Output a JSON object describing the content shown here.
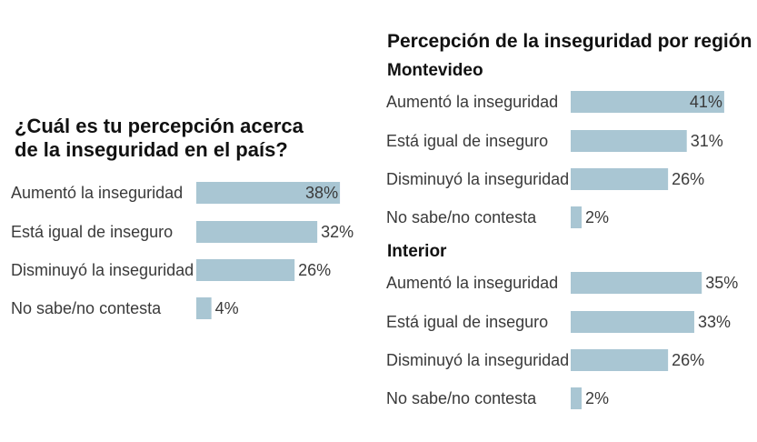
{
  "national": {
    "title_line1": "¿Cuál es tu percepción acerca",
    "title_line2": "de la inseguridad en el país?"
  },
  "regional": {
    "title": "Percepción de la inseguridad por región",
    "montevideo_label": "Montevideo",
    "interior_label": "Interior"
  },
  "colors": {
    "bar": "#a9c6d3",
    "text": "#3a3a3a"
  },
  "chart_data": [
    {
      "type": "bar",
      "orientation": "horizontal",
      "title": "¿Cuál es tu percepción acerca de la inseguridad en el país?",
      "categories": [
        "Aumentó la inseguridad",
        "Está igual de inseguro",
        "Disminuyó la inseguridad",
        "No sabe/no contesta"
      ],
      "values": [
        38,
        32,
        26,
        4
      ],
      "value_labels": [
        "38%",
        "32%",
        "26%",
        "4%"
      ],
      "unit": "%",
      "xlim": [
        0,
        45
      ]
    },
    {
      "type": "bar",
      "orientation": "horizontal",
      "title": "Percepción de la inseguridad por región — Montevideo",
      "categories": [
        "Aumentó la inseguridad",
        "Está igual de inseguro",
        "Disminuyó la inseguridad",
        "No sabe/no contesta"
      ],
      "values": [
        41,
        31,
        26,
        2
      ],
      "value_labels": [
        "41%",
        "31%",
        "26%",
        "2%"
      ],
      "unit": "%",
      "xlim": [
        0,
        45
      ]
    },
    {
      "type": "bar",
      "orientation": "horizontal",
      "title": "Percepción de la inseguridad por región — Interior",
      "categories": [
        "Aumentó la inseguridad",
        "Está igual de inseguro",
        "Disminuyó la inseguridad",
        "No sabe/no contesta"
      ],
      "values": [
        35,
        33,
        26,
        2
      ],
      "value_labels": [
        "35%",
        "33%",
        "26%",
        "2%"
      ],
      "unit": "%",
      "xlim": [
        0,
        45
      ]
    }
  ]
}
